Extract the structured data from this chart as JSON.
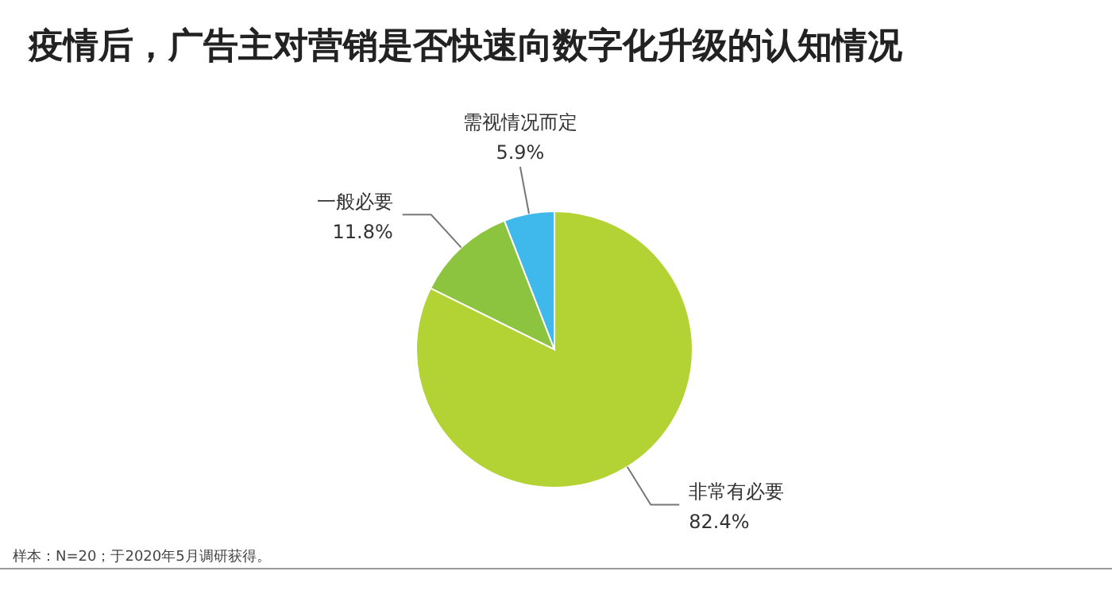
{
  "chart_data": {
    "type": "pie",
    "title": "疫情后，广告主对营销是否快速向数字化升级的认知情况",
    "categories": [
      "非常有必要",
      "一般必要",
      "需视情况而定"
    ],
    "values": [
      82.4,
      11.8,
      5.9
    ],
    "colors": [
      "#b3d334",
      "#8cc43f",
      "#3fb9ec"
    ],
    "value_labels": [
      "82.4%",
      "11.8%",
      "5.9%"
    ],
    "annotations": [
      "样本：N=20；于2020年5月调研获得。"
    ]
  }
}
